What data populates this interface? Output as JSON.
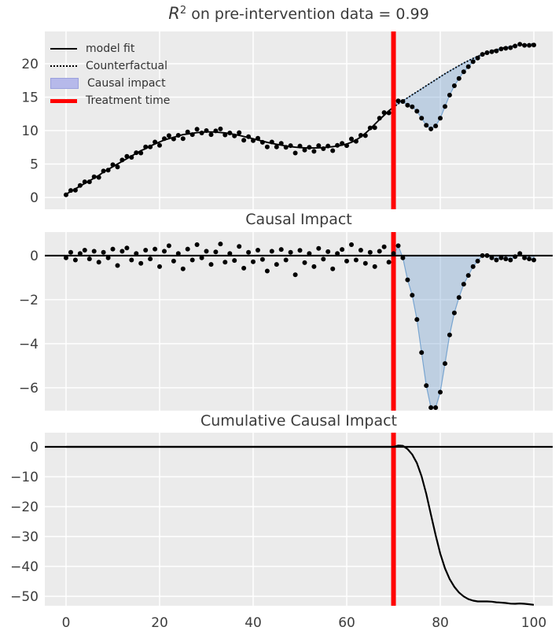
{
  "figure": {
    "background": "#ffffff",
    "axes_background": "#ebebeb",
    "grid_color": "#ffffff",
    "text_color": "#3d3d3d",
    "accent_red": "#ff0000",
    "fill_color": "rgba(105,155,205,0.35)",
    "fill_edge_color": "rgba(105,155,205,0.85)",
    "legend_patch_fill": "#b6b9ea",
    "legend_patch_edge": "#9aa0dd"
  },
  "titles": {
    "plot1_math": "R",
    "plot1_sup": "2",
    "plot1_rest": " on pre-intervention data = 0.99",
    "plot2": "Causal Impact",
    "plot3": "Cumulative Causal Impact"
  },
  "legend": {
    "items": [
      {
        "label": "model fit",
        "sample": "solid-line"
      },
      {
        "label": "Counterfactual",
        "sample": "dotted-line"
      },
      {
        "label": "Causal impact",
        "sample": "patch"
      },
      {
        "label": "Treatment time",
        "sample": "red-line"
      }
    ]
  },
  "chart_data": [
    {
      "type": "line",
      "title": "R^2 on pre-intervention data = 0.99",
      "x_start": 0,
      "x_step": 1,
      "xlim": [
        -4.54,
        104.03
      ],
      "ylim": [
        -1.76,
        24.82
      ],
      "xticks": [
        0,
        20,
        40,
        60,
        80,
        100
      ],
      "x_tick_labels_shown": false,
      "yticks": [
        0,
        5,
        10,
        15,
        20
      ],
      "grid": true,
      "treatment_time": 70,
      "series": [
        {
          "name": "model fit",
          "type": "line",
          "x_range": [
            0,
            70
          ],
          "note": "equals counterfactual values before treatment time"
        },
        {
          "name": "Counterfactual",
          "type": "dotted-line",
          "values": [
            0.5,
            0.9,
            1.3,
            1.7,
            2.1,
            2.5,
            2.9,
            3.3,
            3.8,
            4.2,
            4.6,
            5.0,
            5.4,
            5.8,
            6.2,
            6.6,
            7.0,
            7.3,
            7.7,
            8.0,
            8.3,
            8.6,
            8.8,
            9.0,
            9.2,
            9.4,
            9.5,
            9.6,
            9.7,
            9.75,
            9.8,
            9.8,
            9.78,
            9.72,
            9.65,
            9.55,
            9.42,
            9.28,
            9.12,
            8.95,
            8.78,
            8.6,
            8.42,
            8.25,
            8.1,
            7.95,
            7.82,
            7.7,
            7.6,
            7.52,
            7.46,
            7.42,
            7.4,
            7.4,
            7.42,
            7.46,
            7.52,
            7.6,
            7.7,
            7.82,
            8.0,
            8.25,
            8.6,
            9.05,
            9.6,
            10.25,
            10.95,
            11.65,
            12.3,
            12.95,
            13.5,
            14.0,
            14.45,
            14.9,
            15.35,
            15.8,
            16.25,
            16.7,
            17.15,
            17.6,
            18.05,
            18.5,
            18.9,
            19.3,
            19.7,
            20.1,
            20.45,
            20.8,
            21.1,
            21.4,
            21.65,
            21.9,
            22.1,
            22.3,
            22.45,
            22.6,
            22.7,
            22.8,
            22.85,
            22.9,
            23.0
          ]
        },
        {
          "name": "observed",
          "type": "scatter",
          "values": [
            0.4,
            1.05,
            1.1,
            1.8,
            2.35,
            2.35,
            3.1,
            3.0,
            3.95,
            4.1,
            4.9,
            4.55,
            5.6,
            6.15,
            6.0,
            6.7,
            6.65,
            7.55,
            7.55,
            8.3,
            7.8,
            8.8,
            9.25,
            8.75,
            9.3,
            8.8,
            9.8,
            9.4,
            10.2,
            9.65,
            10.0,
            9.4,
            9.95,
            10.25,
            9.35,
            9.65,
            9.2,
            9.7,
            8.55,
            9.1,
            8.5,
            8.85,
            8.25,
            7.55,
            8.3,
            7.55,
            8.1,
            7.5,
            7.75,
            6.65,
            7.7,
            7.1,
            7.5,
            6.9,
            7.75,
            7.3,
            7.7,
            7.0,
            7.8,
            8.1,
            7.75,
            8.75,
            8.4,
            9.3,
            9.25,
            10.4,
            10.45,
            11.85,
            12.7,
            12.65,
            13.6,
            14.45,
            14.35,
            13.8,
            13.55,
            12.9,
            11.85,
            10.8,
            10.25,
            10.7,
            11.85,
            13.6,
            15.3,
            16.7,
            17.8,
            18.8,
            19.55,
            20.3,
            20.85,
            21.4,
            21.65,
            21.8,
            21.9,
            22.2,
            22.3,
            22.4,
            22.65,
            22.9,
            22.75,
            22.75,
            22.8
          ]
        },
        {
          "name": "Causal impact",
          "type": "fill-between",
          "between": [
            "Counterfactual",
            "observed"
          ],
          "x_range": [
            70,
            100
          ]
        }
      ]
    },
    {
      "type": "scatter",
      "title": "Causal Impact",
      "x_start": 0,
      "x_step": 1,
      "xlim": [
        -4.54,
        104.03
      ],
      "ylim": [
        -7.04,
        1.07
      ],
      "xticks": [
        0,
        20,
        40,
        60,
        80,
        100
      ],
      "x_tick_labels_shown": false,
      "yticks": [
        0,
        -2,
        -4,
        -6
      ],
      "grid": true,
      "treatment_time": 70,
      "series": [
        {
          "name": "pointwise impact",
          "type": "scatter",
          "values": [
            -0.1,
            0.15,
            -0.2,
            0.1,
            0.25,
            -0.15,
            0.2,
            -0.3,
            0.15,
            -0.1,
            0.3,
            -0.45,
            0.2,
            0.35,
            -0.2,
            0.1,
            -0.35,
            0.25,
            -0.15,
            0.3,
            -0.5,
            0.2,
            0.45,
            -0.25,
            0.1,
            -0.6,
            0.3,
            -0.2,
            0.5,
            -0.1,
            0.2,
            -0.4,
            0.17,
            0.53,
            -0.3,
            0.1,
            -0.22,
            0.42,
            -0.57,
            0.15,
            -0.28,
            0.25,
            -0.17,
            -0.7,
            0.2,
            -0.4,
            0.28,
            -0.2,
            0.15,
            -0.87,
            0.24,
            -0.32,
            0.1,
            -0.5,
            0.33,
            -0.16,
            0.18,
            -0.6,
            0.1,
            0.28,
            -0.25,
            0.5,
            -0.2,
            0.25,
            -0.35,
            0.15,
            -0.5,
            0.2,
            0.4,
            -0.3,
            0.1,
            0.45,
            -0.1,
            -1.1,
            -1.8,
            -2.9,
            -4.4,
            -5.9,
            -6.9,
            -6.9,
            -6.2,
            -4.9,
            -3.6,
            -2.6,
            -1.9,
            -1.3,
            -0.9,
            -0.5,
            -0.25,
            0,
            0,
            -0.1,
            -0.2,
            -0.1,
            -0.15,
            -0.2,
            -0.05,
            0.1,
            -0.1,
            -0.15,
            -0.2
          ]
        },
        {
          "name": "zero line",
          "type": "hline",
          "y": 0
        },
        {
          "name": "Causal impact",
          "type": "fill-between",
          "between": [
            "zero",
            "pointwise impact"
          ],
          "x_range": [
            70,
            100
          ]
        }
      ]
    },
    {
      "type": "line",
      "title": "Cumulative Causal Impact",
      "x_start": 0,
      "x_step": 1,
      "xlim": [
        -4.54,
        104.03
      ],
      "ylim": [
        -53.16,
        4.74
      ],
      "xticks": [
        0,
        20,
        40,
        60,
        80,
        100
      ],
      "x_tick_labels_shown": true,
      "yticks": [
        0,
        -10,
        -20,
        -30,
        -40,
        -50
      ],
      "grid": true,
      "treatment_time": 70,
      "series": [
        {
          "name": "cumulative impact",
          "type": "line",
          "values": [
            0,
            0,
            0,
            0,
            0,
            0,
            0,
            0,
            0,
            0,
            0,
            0,
            0,
            0,
            0,
            0,
            0,
            0,
            0,
            0,
            0,
            0,
            0,
            0,
            0,
            0,
            0,
            0,
            0,
            0,
            0,
            0,
            0,
            0,
            0,
            0,
            0,
            0,
            0,
            0,
            0,
            0,
            0,
            0,
            0,
            0,
            0,
            0,
            0,
            0,
            0,
            0,
            0,
            0,
            0,
            0,
            0,
            0,
            0,
            0,
            0,
            0,
            0,
            0,
            0,
            0,
            0,
            0,
            0,
            0,
            0,
            0.45,
            0.35,
            -0.75,
            -2.55,
            -5.45,
            -9.85,
            -15.75,
            -22.65,
            -29.55,
            -35.75,
            -40.65,
            -44.25,
            -46.85,
            -48.75,
            -50.05,
            -50.95,
            -51.45,
            -51.7,
            -51.7,
            -51.7,
            -51.8,
            -52.0,
            -52.1,
            -52.25,
            -52.45,
            -52.5,
            -52.4,
            -52.5,
            -52.65,
            -52.85
          ]
        },
        {
          "name": "zero line",
          "type": "hline",
          "y": 0
        }
      ]
    }
  ]
}
